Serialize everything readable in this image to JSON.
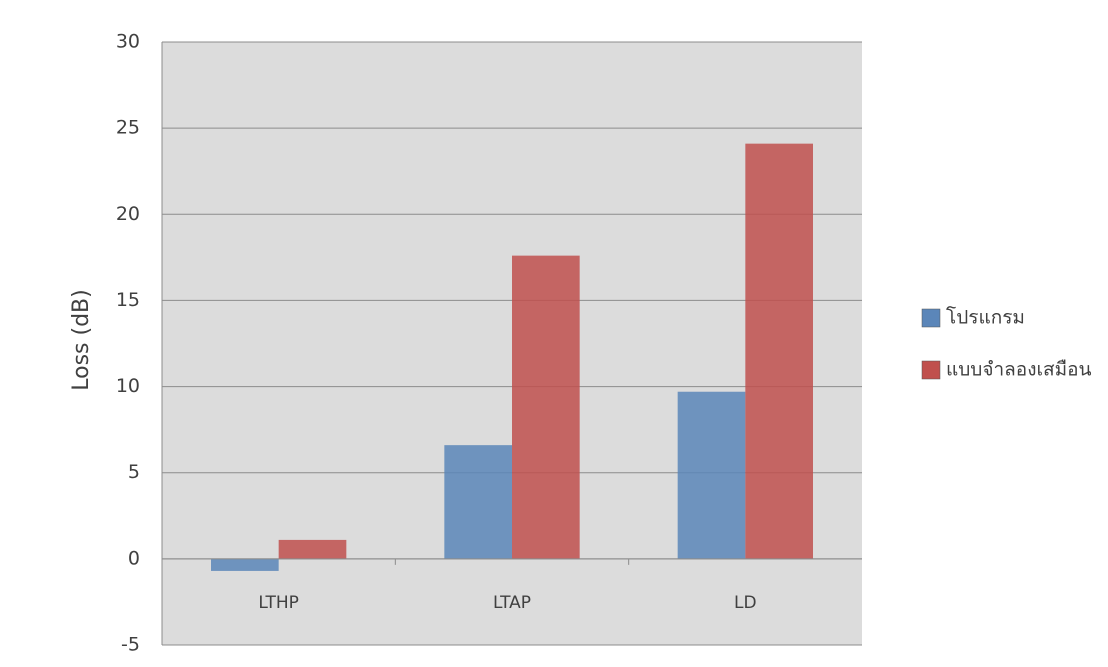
{
  "chart_data": {
    "type": "bar",
    "categories": [
      "LTHP",
      "LTAP",
      "LD"
    ],
    "series": [
      {
        "name": "โปรแกรม",
        "color": "#5b86b9",
        "values": [
          -0.7,
          6.6,
          9.7
        ]
      },
      {
        "name": "แบบจำลองเสมือน",
        "color": "#c0504d",
        "values": [
          1.1,
          17.6,
          24.1
        ]
      }
    ],
    "ylabel": "Loss (dB)",
    "ylim": [
      -5,
      30
    ],
    "yticks": [
      -5,
      0,
      5,
      10,
      15,
      20,
      25,
      30
    ],
    "grid": true,
    "legend": "right"
  }
}
